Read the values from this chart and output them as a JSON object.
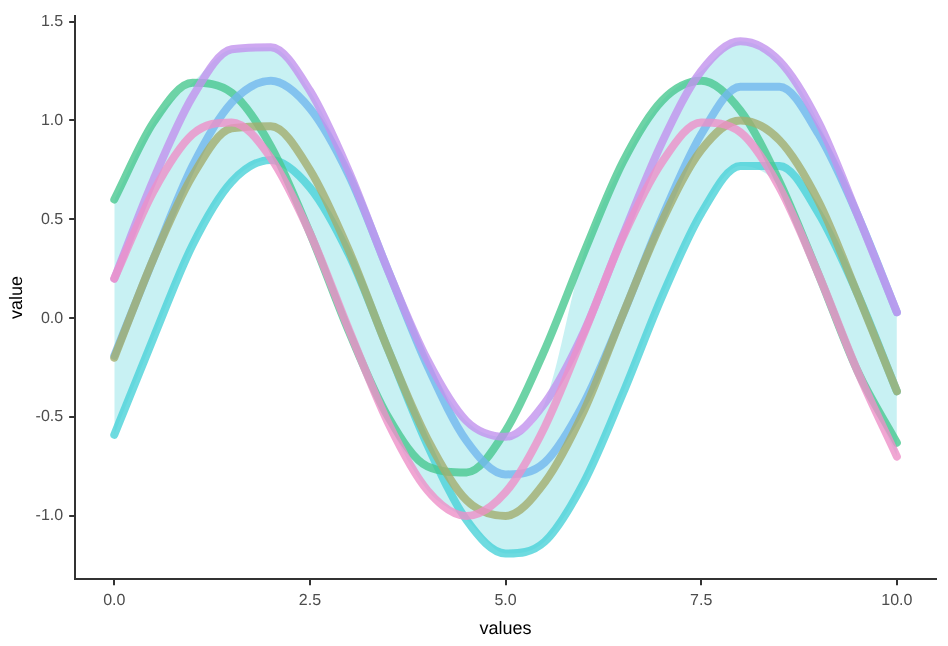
{
  "chart_data": {
    "type": "line",
    "xlabel": "values",
    "ylabel": "value",
    "x": [
      0,
      0.5,
      1,
      1.5,
      2,
      2.5,
      3,
      3.5,
      4,
      4.5,
      5,
      5.5,
      6,
      6.5,
      7,
      7.5,
      8,
      8.5,
      9,
      9.5,
      10
    ],
    "series": [
      {
        "color": "#ee90c8",
        "values": [
          0.2,
          0.64,
          0.93,
          0.99,
          0.81,
          0.43,
          -0.06,
          -0.53,
          -0.87,
          -1.0,
          -0.88,
          -0.55,
          -0.08,
          0.41,
          0.79,
          0.99,
          0.94,
          0.66,
          0.22,
          -0.27,
          -0.7
        ]
      },
      {
        "color": "#a3ae6e",
        "values": [
          -0.2,
          0.3,
          0.72,
          0.96,
          0.97,
          0.75,
          0.34,
          -0.16,
          -0.61,
          -0.92,
          -1.0,
          -0.83,
          -0.47,
          0.02,
          0.49,
          0.85,
          1.0,
          0.9,
          0.59,
          0.12,
          -0.37
        ]
      },
      {
        "color": "#c292ee",
        "values": [
          0.2,
          0.7,
          1.12,
          1.36,
          1.37,
          1.15,
          0.74,
          0.24,
          -0.21,
          -0.52,
          -0.6,
          -0.43,
          -0.07,
          0.42,
          0.89,
          1.25,
          1.4,
          1.3,
          0.99,
          0.52,
          0.03
        ]
      },
      {
        "color": "#72b8ee",
        "values": [
          -0.19,
          0.3,
          0.77,
          1.09,
          1.2,
          1.06,
          0.72,
          0.24,
          -0.24,
          -0.62,
          -0.79,
          -0.73,
          -0.43,
          0.02,
          0.51,
          0.93,
          1.17,
          1.17,
          0.93,
          0.52,
          0.03
        ]
      },
      {
        "color": "#48c890",
        "values": [
          0.6,
          0.99,
          1.19,
          1.14,
          0.87,
          0.43,
          -0.07,
          -0.5,
          -0.75,
          -0.78,
          -0.57,
          -0.16,
          0.33,
          0.79,
          1.1,
          1.2,
          1.05,
          0.69,
          0.22,
          -0.27,
          -0.63
        ]
      },
      {
        "color": "#4ad2d8",
        "values": [
          -0.59,
          -0.1,
          0.37,
          0.69,
          0.8,
          0.66,
          0.32,
          -0.16,
          -0.64,
          -1.02,
          -1.19,
          -1.13,
          -0.83,
          -0.38,
          0.11,
          0.53,
          0.77,
          0.77,
          0.53,
          0.12,
          -0.37
        ],
        "lower": [
          -0.59,
          -0.1,
          0.37,
          0.69,
          0.8,
          0.43,
          -0.07,
          -0.53,
          -0.87,
          -1.02,
          -1.19,
          -1.13,
          -0.83,
          -0.38,
          0.11,
          0.53,
          0.77,
          0.66,
          0.22,
          -0.27,
          -0.7
        ],
        "upper": [
          0.6,
          0.99,
          1.19,
          1.36,
          1.37,
          1.15,
          0.74,
          0.24,
          -0.21,
          -0.52,
          -0.6,
          -0.43,
          0.33,
          0.79,
          1.1,
          1.25,
          1.4,
          1.3,
          0.99,
          0.52,
          0.03
        ]
      }
    ],
    "xlim": [
      -0.5,
      10.5
    ],
    "xticks": [
      {
        "value": 0,
        "label": "0.0"
      },
      {
        "value": 2.5,
        "label": "2.5"
      },
      {
        "value": 5,
        "label": "5.0"
      },
      {
        "value": 7.5,
        "label": "7.5"
      },
      {
        "value": 10,
        "label": "10.0"
      }
    ],
    "ylim": [
      -1.32,
      1.53
    ],
    "yticks": [
      {
        "value": -1,
        "label": "-1.0"
      },
      {
        "value": -0.5,
        "label": "-0.5"
      },
      {
        "value": 0,
        "label": "0.0"
      },
      {
        "value": 0.5,
        "label": "0.5"
      },
      {
        "value": 1,
        "label": "1.0"
      },
      {
        "value": 1.5,
        "label": "1.5"
      }
    ],
    "grid": false,
    "legend": false,
    "marker": "none",
    "line_style": "solid"
  }
}
